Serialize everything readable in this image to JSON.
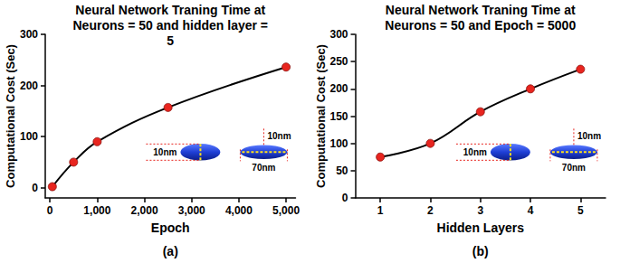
{
  "chart_data": [
    {
      "type": "line",
      "title": "Neural Network Traning Time at Neurons = 50 and hidden layer = 5",
      "panel_label": "(a)",
      "x_label": "Epoch",
      "y_label": "Computational Cost (Sec)",
      "x": [
        50,
        500,
        1000,
        2500,
        5000
      ],
      "values": [
        2,
        50,
        90,
        157,
        236
      ],
      "color": "#e8251f",
      "marker": "circle",
      "line_style": "solid",
      "xlim": [
        -100,
        5200
      ],
      "xticks": [
        0,
        {
          "value": 1000,
          "label": "1,000"
        },
        {
          "value": 2000,
          "label": "2,000"
        },
        {
          "value": 3000,
          "label": "3,000"
        },
        {
          "value": 4000,
          "label": "4,000"
        },
        {
          "value": 5000,
          "label": "5,000"
        }
      ],
      "ylim": [
        -20,
        300
      ],
      "yticks": [
        0,
        100,
        200,
        300
      ],
      "grid": false,
      "annotations": [
        "10nm",
        "10nm",
        "70nm"
      ]
    },
    {
      "type": "line",
      "title": "Neural Network Traning Time at Neurons = 50 and Epoch = 5000",
      "panel_label": "(b)",
      "x_label": "Hidden Layers",
      "y_label": "Computational Cost (Sec)",
      "x": [
        1,
        2,
        3,
        4,
        5
      ],
      "values": [
        75,
        100,
        158,
        200,
        236
      ],
      "color": "#e8251f",
      "marker": "circle",
      "line_style": "solid",
      "xlim": [
        0.5,
        5.5
      ],
      "xticks": [
        1,
        2,
        3,
        4,
        5
      ],
      "ylim": [
        0,
        300
      ],
      "yticks": [
        0,
        50,
        100,
        150,
        200,
        250,
        300
      ],
      "grid": false,
      "annotations": [
        "10nm",
        "10nm",
        "70nm"
      ]
    }
  ]
}
